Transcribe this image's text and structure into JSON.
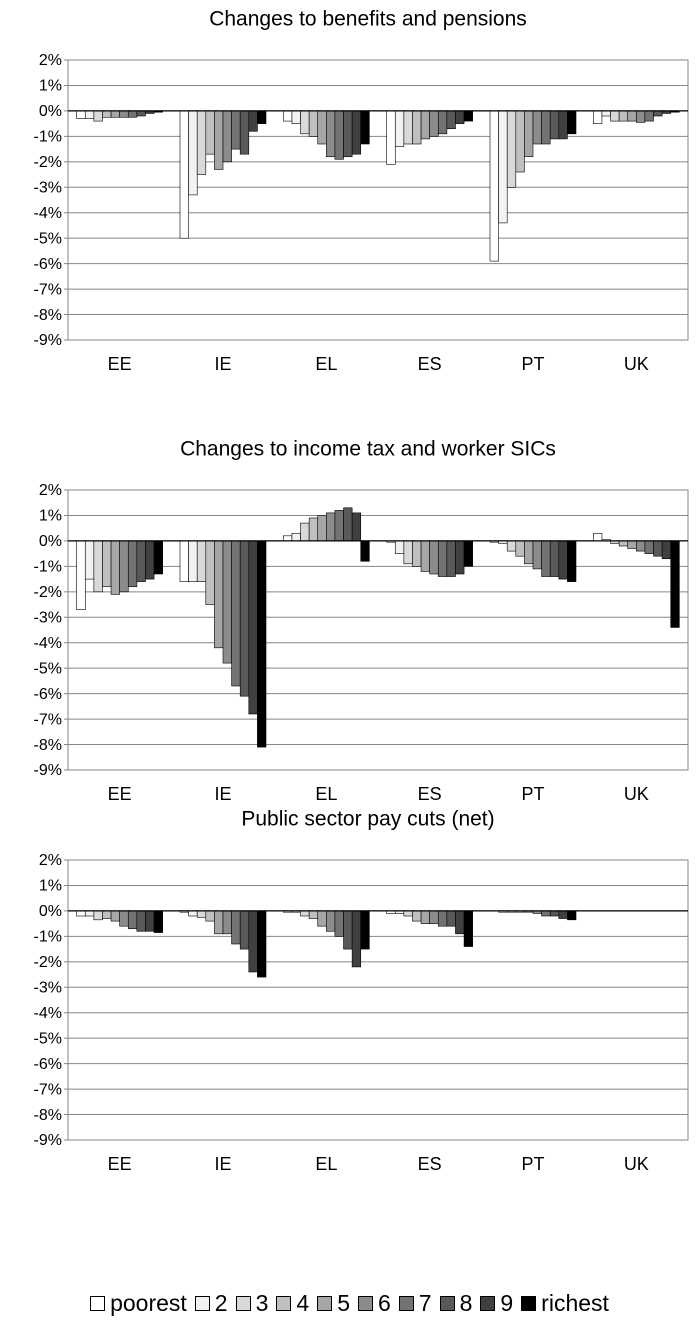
{
  "chart_data": [
    {
      "type": "bar",
      "title": "Changes to benefits and pensions",
      "categories": [
        "EE",
        "IE",
        "EL",
        "ES",
        "PT",
        "UK"
      ],
      "ylim": [
        -9,
        2
      ],
      "yticks": [
        {
          "value": 2,
          "label": "2%"
        },
        {
          "value": 1,
          "label": "1%"
        },
        {
          "value": 0,
          "label": "0%"
        },
        {
          "value": -1,
          "label": "-1%"
        },
        {
          "value": -2,
          "label": "-2%"
        },
        {
          "value": -3,
          "label": "-3%"
        },
        {
          "value": -4,
          "label": "-4%"
        },
        {
          "value": -5,
          "label": "-5%"
        },
        {
          "value": -6,
          "label": "-6%"
        },
        {
          "value": -7,
          "label": "-7%"
        },
        {
          "value": -8,
          "label": "-8%"
        },
        {
          "value": -9,
          "label": "-9%"
        }
      ],
      "grid": true,
      "series": [
        {
          "values": [
            -0.3,
            -5.0,
            -0.4,
            -2.1,
            -5.9,
            -0.5
          ]
        },
        {
          "values": [
            -0.3,
            -3.3,
            -0.5,
            -1.4,
            -4.4,
            -0.2
          ]
        },
        {
          "values": [
            -0.4,
            -2.5,
            -0.9,
            -1.3,
            -3.0,
            -0.4
          ]
        },
        {
          "values": [
            -0.25,
            -1.7,
            -1.0,
            -1.3,
            -2.4,
            -0.4
          ]
        },
        {
          "values": [
            -0.25,
            -2.3,
            -1.3,
            -1.1,
            -1.8,
            -0.4
          ]
        },
        {
          "values": [
            -0.25,
            -2.0,
            -1.8,
            -1.0,
            -1.3,
            -0.45
          ]
        },
        {
          "values": [
            -0.25,
            -1.5,
            -1.9,
            -0.9,
            -1.3,
            -0.4
          ]
        },
        {
          "values": [
            -0.2,
            -1.7,
            -1.8,
            -0.7,
            -1.1,
            -0.2
          ]
        },
        {
          "values": [
            -0.1,
            -0.8,
            -1.7,
            -0.5,
            -1.1,
            -0.1
          ]
        },
        {
          "values": [
            -0.05,
            -0.5,
            -1.3,
            -0.4,
            -0.9,
            -0.05
          ]
        }
      ]
    },
    {
      "type": "bar",
      "title": "Changes to income tax and worker SICs",
      "categories": [
        "EE",
        "IE",
        "EL",
        "ES",
        "PT",
        "UK"
      ],
      "ylim": [
        -9,
        2
      ],
      "yticks": [
        {
          "value": 2,
          "label": "2%"
        },
        {
          "value": 1,
          "label": "1%"
        },
        {
          "value": 0,
          "label": "0%"
        },
        {
          "value": -1,
          "label": "-1%"
        },
        {
          "value": -2,
          "label": "-2%"
        },
        {
          "value": -3,
          "label": "-3%"
        },
        {
          "value": -4,
          "label": "-4%"
        },
        {
          "value": -5,
          "label": "-5%"
        },
        {
          "value": -6,
          "label": "-6%"
        },
        {
          "value": -7,
          "label": "-7%"
        },
        {
          "value": -8,
          "label": "-8%"
        },
        {
          "value": -9,
          "label": "-9%"
        }
      ],
      "grid": true,
      "series": [
        {
          "values": [
            -2.7,
            -1.6,
            0.2,
            -0.05,
            -0.05,
            0.3
          ]
        },
        {
          "values": [
            -1.5,
            -1.6,
            0.3,
            -0.5,
            -0.1,
            0.05
          ]
        },
        {
          "values": [
            -2.0,
            -1.6,
            0.7,
            -0.9,
            -0.4,
            -0.1
          ]
        },
        {
          "values": [
            -1.8,
            -2.5,
            0.9,
            -1.0,
            -0.6,
            -0.2
          ]
        },
        {
          "values": [
            -2.1,
            -4.2,
            1.0,
            -1.2,
            -0.9,
            -0.3
          ]
        },
        {
          "values": [
            -2.0,
            -4.8,
            1.1,
            -1.3,
            -1.1,
            -0.4
          ]
        },
        {
          "values": [
            -1.8,
            -5.7,
            1.2,
            -1.4,
            -1.4,
            -0.5
          ]
        },
        {
          "values": [
            -1.6,
            -6.1,
            1.3,
            -1.4,
            -1.4,
            -0.6
          ]
        },
        {
          "values": [
            -1.5,
            -6.8,
            1.1,
            -1.3,
            -1.5,
            -0.7
          ]
        },
        {
          "values": [
            -1.3,
            -8.1,
            -0.8,
            -1.0,
            -1.6,
            -3.4
          ]
        }
      ]
    },
    {
      "type": "bar",
      "title": "Public sector pay cuts (net)",
      "categories": [
        "EE",
        "IE",
        "EL",
        "ES",
        "PT",
        "UK"
      ],
      "ylim": [
        -9,
        2
      ],
      "yticks": [
        {
          "value": 2,
          "label": "2%"
        },
        {
          "value": 1,
          "label": "1%"
        },
        {
          "value": 0,
          "label": "0%"
        },
        {
          "value": -1,
          "label": "-1%"
        },
        {
          "value": -2,
          "label": "-2%"
        },
        {
          "value": -3,
          "label": "-3%"
        },
        {
          "value": -4,
          "label": "-4%"
        },
        {
          "value": -5,
          "label": "-5%"
        },
        {
          "value": -6,
          "label": "-6%"
        },
        {
          "value": -7,
          "label": "-7%"
        },
        {
          "value": -8,
          "label": "-8%"
        },
        {
          "value": -9,
          "label": "-9%"
        }
      ],
      "grid": true,
      "series": [
        {
          "values": [
            -0.2,
            -0.05,
            -0.05,
            -0.1,
            0,
            0
          ]
        },
        {
          "values": [
            -0.2,
            -0.2,
            -0.05,
            -0.1,
            -0.05,
            0
          ]
        },
        {
          "values": [
            -0.35,
            -0.25,
            -0.2,
            -0.2,
            -0.05,
            0
          ]
        },
        {
          "values": [
            -0.3,
            -0.4,
            -0.3,
            -0.4,
            -0.05,
            0
          ]
        },
        {
          "values": [
            -0.4,
            -0.9,
            -0.6,
            -0.5,
            -0.05,
            0
          ]
        },
        {
          "values": [
            -0.6,
            -0.9,
            -0.8,
            -0.5,
            -0.1,
            0
          ]
        },
        {
          "values": [
            -0.7,
            -1.3,
            -1.0,
            -0.6,
            -0.2,
            0
          ]
        },
        {
          "values": [
            -0.8,
            -1.5,
            -1.5,
            -0.6,
            -0.2,
            0
          ]
        },
        {
          "values": [
            -0.8,
            -2.4,
            -2.2,
            -0.9,
            -0.3,
            0
          ]
        },
        {
          "values": [
            -0.85,
            -2.6,
            -1.5,
            -1.4,
            -0.35,
            0
          ]
        }
      ]
    }
  ],
  "legend": [
    {
      "name": "poorest",
      "color": "#ffffff"
    },
    {
      "name": "2",
      "color": "#f2f2f2"
    },
    {
      "name": "3",
      "color": "#d9d9d9"
    },
    {
      "name": "4",
      "color": "#bfbfbf"
    },
    {
      "name": "5",
      "color": "#a6a6a6"
    },
    {
      "name": "6",
      "color": "#8c8c8c"
    },
    {
      "name": "7",
      "color": "#737373"
    },
    {
      "name": "8",
      "color": "#595959"
    },
    {
      "name": "9",
      "color": "#404040"
    },
    {
      "name": "richest",
      "color": "#000000"
    }
  ]
}
